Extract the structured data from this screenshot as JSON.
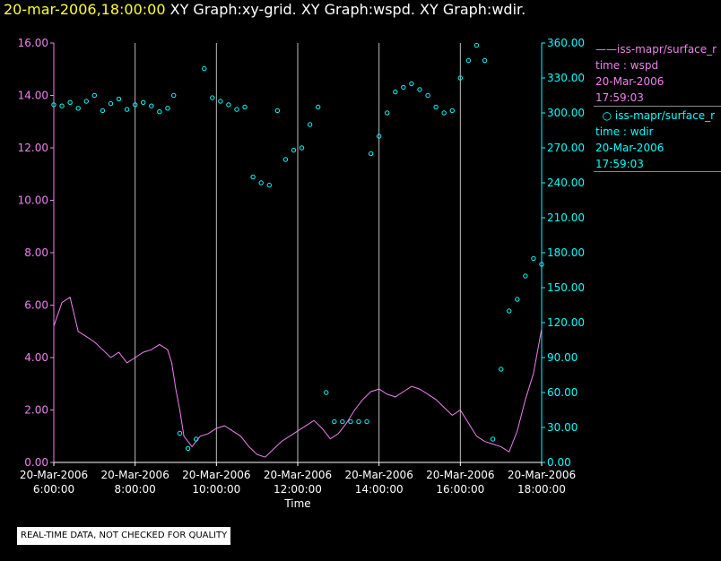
{
  "header": {
    "timestamp": "20-mar-2006,18:00:00",
    "graphs": "XY Graph:xy-grid.  XY Graph:wspd.  XY Graph:wdir."
  },
  "legend": {
    "wspd": {
      "name": "iss-mapr/surface_r",
      "variable": "time : wspd",
      "date": "20-Mar-2006",
      "time": "17:59:03",
      "color": "#ee82ee"
    },
    "wdir": {
      "name": "iss-mapr/surface_r",
      "variable": "time : wdir",
      "date": "20-Mar-2006",
      "time": "17:59:03",
      "color": "#00ffff"
    }
  },
  "notice": "REAL-TIME DATA, NOT CHECKED FOR QUALITY",
  "chart_data": {
    "type": "line",
    "xlabel": "Time",
    "x_unit": "hours",
    "xlim": [
      6.0,
      18.0
    ],
    "x_ticks": [
      {
        "value": 6,
        "date": "20-Mar-2006",
        "time": "6:00:00"
      },
      {
        "value": 8,
        "date": "20-Mar-2006",
        "time": "8:00:00"
      },
      {
        "value": 10,
        "date": "20-Mar-2006",
        "time": "10:00:00"
      },
      {
        "value": 12,
        "date": "20-Mar-2006",
        "time": "12:00:00"
      },
      {
        "value": 14,
        "date": "20-Mar-2006",
        "time": "14:00:00"
      },
      {
        "value": 16,
        "date": "20-Mar-2006",
        "time": "16:00:00"
      },
      {
        "value": 18,
        "date": "20-Mar-2006",
        "time": "18:00:00"
      }
    ],
    "grid_x": true,
    "left_axis": {
      "ylim": [
        0,
        16
      ],
      "ticks": [
        "0.00",
        "2.00",
        "4.00",
        "6.00",
        "8.00",
        "10.00",
        "12.00",
        "14.00",
        "16.00"
      ],
      "color": "#ee82ee"
    },
    "right_axis": {
      "ylim": [
        0,
        360
      ],
      "ticks": [
        "0.00",
        "30.00",
        "60.00",
        "90.00",
        "120.00",
        "150.00",
        "180.00",
        "210.00",
        "240.00",
        "270.00",
        "300.00",
        "330.00",
        "360.00"
      ],
      "color": "#00ffff"
    },
    "series": [
      {
        "name": "wspd",
        "style": "line",
        "axis": "left",
        "color": "#ee82ee",
        "points": [
          [
            6.0,
            5.2
          ],
          [
            6.2,
            6.1
          ],
          [
            6.4,
            6.3
          ],
          [
            6.6,
            5.0
          ],
          [
            6.8,
            4.8
          ],
          [
            7.0,
            4.6
          ],
          [
            7.2,
            4.3
          ],
          [
            7.4,
            4.0
          ],
          [
            7.6,
            4.2
          ],
          [
            7.8,
            3.8
          ],
          [
            8.0,
            4.0
          ],
          [
            8.2,
            4.2
          ],
          [
            8.4,
            4.3
          ],
          [
            8.6,
            4.5
          ],
          [
            8.8,
            4.3
          ],
          [
            8.9,
            3.8
          ],
          [
            9.0,
            2.8
          ],
          [
            9.1,
            2.0
          ],
          [
            9.2,
            1.0
          ],
          [
            9.4,
            0.6
          ],
          [
            9.6,
            1.0
          ],
          [
            9.8,
            1.1
          ],
          [
            10.0,
            1.3
          ],
          [
            10.2,
            1.4
          ],
          [
            10.4,
            1.2
          ],
          [
            10.6,
            1.0
          ],
          [
            10.8,
            0.6
          ],
          [
            11.0,
            0.3
          ],
          [
            11.2,
            0.2
          ],
          [
            11.4,
            0.5
          ],
          [
            11.6,
            0.8
          ],
          [
            11.8,
            1.0
          ],
          [
            12.0,
            1.2
          ],
          [
            12.2,
            1.4
          ],
          [
            12.4,
            1.6
          ],
          [
            12.6,
            1.3
          ],
          [
            12.8,
            0.9
          ],
          [
            13.0,
            1.1
          ],
          [
            13.2,
            1.5
          ],
          [
            13.4,
            2.0
          ],
          [
            13.6,
            2.4
          ],
          [
            13.8,
            2.7
          ],
          [
            14.0,
            2.8
          ],
          [
            14.2,
            2.6
          ],
          [
            14.4,
            2.5
          ],
          [
            14.6,
            2.7
          ],
          [
            14.8,
            2.9
          ],
          [
            15.0,
            2.8
          ],
          [
            15.2,
            2.6
          ],
          [
            15.4,
            2.4
          ],
          [
            15.6,
            2.1
          ],
          [
            15.8,
            1.8
          ],
          [
            16.0,
            2.0
          ],
          [
            16.2,
            1.5
          ],
          [
            16.4,
            1.0
          ],
          [
            16.6,
            0.8
          ],
          [
            16.8,
            0.7
          ],
          [
            17.0,
            0.6
          ],
          [
            17.2,
            0.4
          ],
          [
            17.4,
            1.2
          ],
          [
            17.6,
            2.4
          ],
          [
            17.8,
            3.4
          ],
          [
            18.0,
            5.1
          ]
        ]
      },
      {
        "name": "wdir",
        "style": "scatter",
        "axis": "right",
        "color": "#00ffff",
        "points": [
          [
            6.0,
            307
          ],
          [
            6.2,
            306
          ],
          [
            6.4,
            309
          ],
          [
            6.6,
            304
          ],
          [
            6.8,
            310
          ],
          [
            7.0,
            315
          ],
          [
            7.2,
            302
          ],
          [
            7.4,
            308
          ],
          [
            7.6,
            312
          ],
          [
            7.8,
            303
          ],
          [
            8.0,
            307
          ],
          [
            8.2,
            309
          ],
          [
            8.4,
            306
          ],
          [
            8.6,
            301
          ],
          [
            8.8,
            304
          ],
          [
            8.95,
            315
          ],
          [
            9.1,
            25
          ],
          [
            9.3,
            12
          ],
          [
            9.5,
            20
          ],
          [
            9.7,
            338
          ],
          [
            9.9,
            313
          ],
          [
            10.1,
            310
          ],
          [
            10.3,
            307
          ],
          [
            10.5,
            303
          ],
          [
            10.7,
            305
          ],
          [
            10.9,
            245
          ],
          [
            11.1,
            240
          ],
          [
            11.3,
            238
          ],
          [
            11.5,
            302
          ],
          [
            11.7,
            260
          ],
          [
            11.9,
            268
          ],
          [
            12.1,
            270
          ],
          [
            12.3,
            290
          ],
          [
            12.5,
            305
          ],
          [
            12.7,
            60
          ],
          [
            12.9,
            35
          ],
          [
            13.1,
            35
          ],
          [
            13.3,
            35
          ],
          [
            13.5,
            35
          ],
          [
            13.7,
            35
          ],
          [
            13.8,
            265
          ],
          [
            14.0,
            280
          ],
          [
            14.2,
            300
          ],
          [
            14.4,
            318
          ],
          [
            14.6,
            322
          ],
          [
            14.8,
            325
          ],
          [
            15.0,
            320
          ],
          [
            15.2,
            315
          ],
          [
            15.4,
            305
          ],
          [
            15.6,
            300
          ],
          [
            15.8,
            302
          ],
          [
            16.0,
            330
          ],
          [
            16.2,
            345
          ],
          [
            16.4,
            358
          ],
          [
            16.6,
            345
          ],
          [
            16.8,
            20
          ],
          [
            17.0,
            80
          ],
          [
            17.2,
            130
          ],
          [
            17.4,
            140
          ],
          [
            17.6,
            160
          ],
          [
            17.8,
            175
          ],
          [
            18.0,
            170
          ]
        ]
      }
    ]
  }
}
